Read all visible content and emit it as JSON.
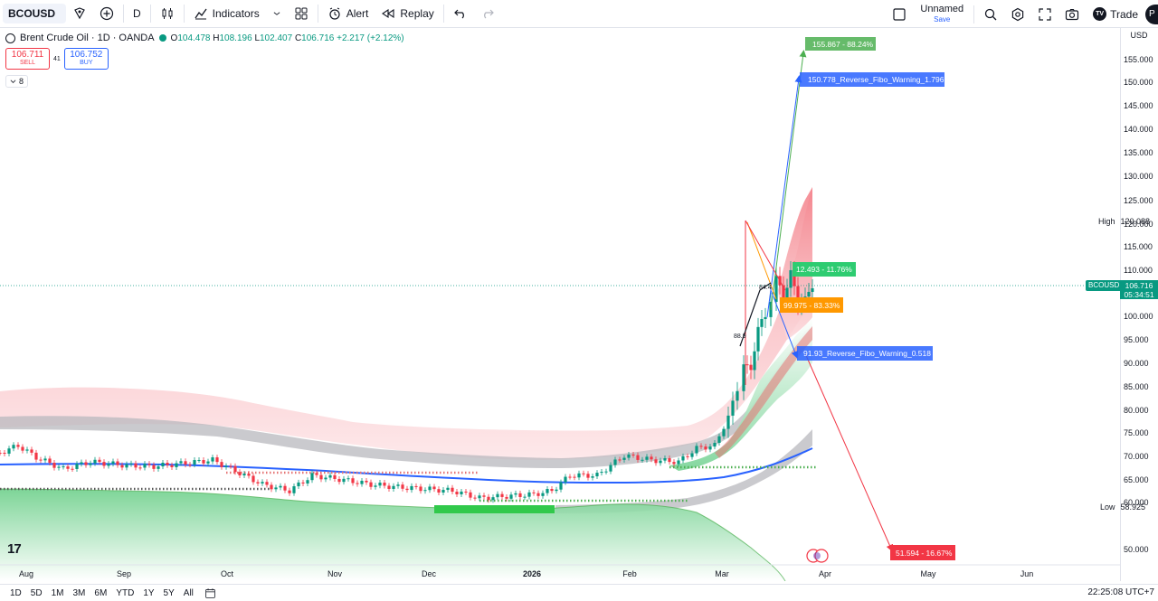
{
  "toolbar": {
    "symbol": "BCOUSD",
    "interval": "D",
    "indicators_label": "Indicators",
    "alert_label": "Alert",
    "replay_label": "Replay",
    "layout_name": "Unnamed",
    "layout_save": "Save",
    "trade_label": "Trade",
    "trade_logo": "TV",
    "avatar": "P"
  },
  "legend": {
    "title": "Brent Crude Oil · 1D · OANDA",
    "open_label": "O",
    "open": "104.478",
    "high_label": "H",
    "high": "108.196",
    "low_label": "L",
    "low": "102.407",
    "close_label": "C",
    "close": "106.716",
    "change": "+2.217 (+2.12%)",
    "sell_price": "106.711",
    "sell_label": "SELL",
    "spread": "41",
    "buy_price": "106.752",
    "buy_label": "BUY",
    "indicator_count": "8"
  },
  "price_axis": {
    "currency": "USD",
    "ticks": [
      "155.000",
      "150.000",
      "145.000",
      "140.000",
      "135.000",
      "130.000",
      "125.000",
      "120.000",
      "115.000",
      "110.000",
      "100.000",
      "95.000",
      "90.000",
      "85.000",
      "80.000",
      "75.000",
      "70.000",
      "65.000",
      "60.000",
      "50.000"
    ],
    "high_label": "High",
    "high_value": "120.088",
    "low_label": "Low",
    "low_value": "58.925",
    "symbol_tag": "BCOUSD",
    "last_price": "106.716",
    "countdown": "05:34:51"
  },
  "time_axis": {
    "labels": [
      "Aug",
      "Sep",
      "Oct",
      "Nov",
      "Dec",
      "2026",
      "Feb",
      "Mar",
      "Apr",
      "May",
      "Jun"
    ]
  },
  "annotations": {
    "target_up": "155.867 - 88.24%",
    "fibo_warning_high": "150.778_Reverse_Fibo_Warning_1.796",
    "level_green": "12.493 - 11.76%",
    "level_orange": "99.975 - 83.33%",
    "fibo_warning_low": "91.93_Reverse_Fibo_Warning_0.518",
    "target_down": "51.594 - 16.67%",
    "pivot_1": "84.4",
    "pivot_2": "88.9"
  },
  "bottom_bar": {
    "ranges": [
      "1D",
      "5D",
      "1M",
      "3M",
      "6M",
      "YTD",
      "1Y",
      "5Y",
      "All"
    ],
    "timezone": "22:25:08 UTC+7"
  },
  "colors": {
    "up": "#089981",
    "down": "#f23645",
    "accent": "#2962ff"
  },
  "logo_text": "17"
}
